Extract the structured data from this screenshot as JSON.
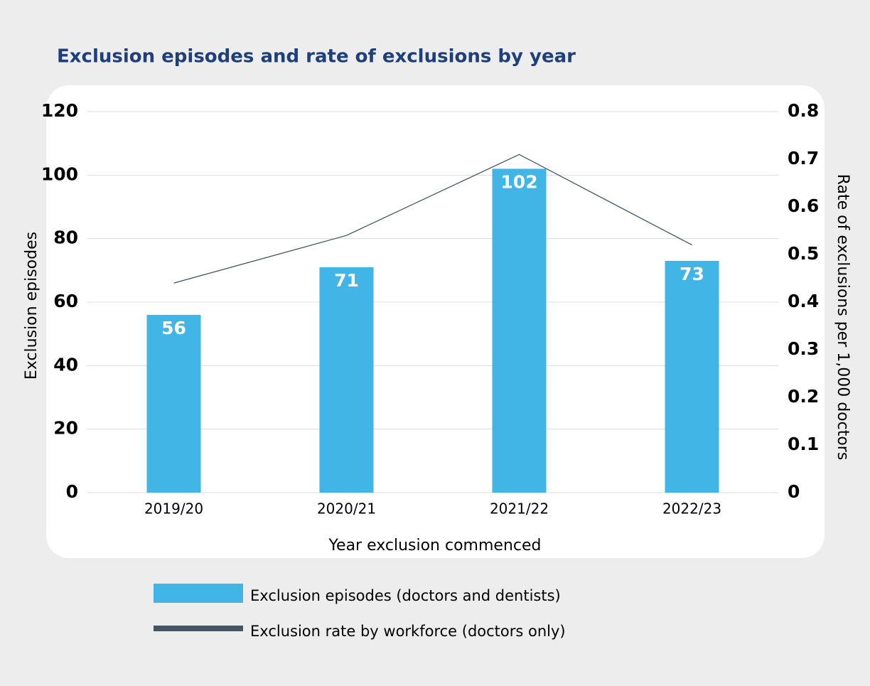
{
  "chart_data": {
    "type": "bar-line",
    "title": "Exclusion episodes and rate of exclusions by year",
    "x_label": "Year exclusion commenced",
    "y_label": "Exclusion episodes",
    "y2_label": "Rate of exclusions per 1,000 doctors",
    "categories": [
      "2019/20",
      "2020/21",
      "2021/22",
      "2022/23"
    ],
    "series": [
      {
        "name": "Exclusion episodes (doctors and dentists)",
        "type": "bar",
        "color": "#41b6e6",
        "values": [
          56,
          71,
          102,
          73
        ]
      },
      {
        "name": "Exclusion rate by workforce (doctors only)",
        "type": "line",
        "axis": "y2",
        "color": "#425563",
        "values": [
          0.44,
          0.54,
          0.71,
          0.52
        ]
      }
    ],
    "ylim": [
      0,
      120
    ],
    "yticks": [
      0,
      20,
      40,
      60,
      80,
      100,
      120
    ],
    "y2lim": [
      0,
      0.8
    ],
    "y2ticks": [
      0,
      0.1,
      0.2,
      0.3,
      0.4,
      0.5,
      0.6,
      0.7,
      0.8
    ],
    "grid": true
  }
}
